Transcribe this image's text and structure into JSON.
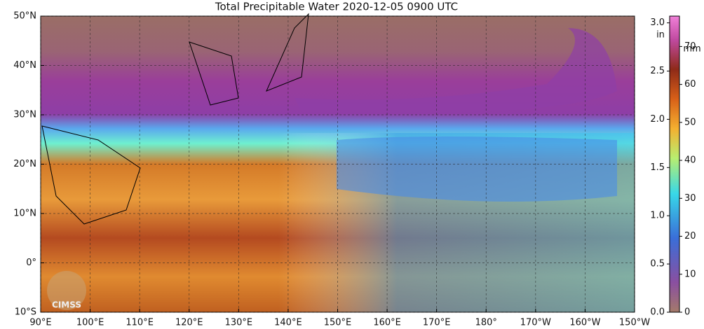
{
  "map": {
    "title": "Total Precipitable Water  2020-12-05 0900 UTC",
    "lon_range": [
      90,
      210
    ],
    "lat_range": [
      -10,
      50
    ],
    "lat_ticks": [
      {
        "value": 50,
        "label": "50°N"
      },
      {
        "value": 40,
        "label": "40°N"
      },
      {
        "value": 30,
        "label": "30°N"
      },
      {
        "value": 20,
        "label": "20°N"
      },
      {
        "value": 10,
        "label": "10°N"
      },
      {
        "value": 0,
        "label": "0°"
      },
      {
        "value": -10,
        "label": "10°S"
      }
    ],
    "lon_ticks": [
      {
        "value": 90,
        "label": "90°E"
      },
      {
        "value": 100,
        "label": "100°E"
      },
      {
        "value": 110,
        "label": "110°E"
      },
      {
        "value": 120,
        "label": "120°E"
      },
      {
        "value": 130,
        "label": "130°E"
      },
      {
        "value": 140,
        "label": "140°E"
      },
      {
        "value": 150,
        "label": "150°E"
      },
      {
        "value": 160,
        "label": "160°E"
      },
      {
        "value": 170,
        "label": "170°E"
      },
      {
        "value": 180,
        "label": "180°"
      },
      {
        "value": 190,
        "label": "170°W"
      },
      {
        "value": 200,
        "label": "160°W"
      },
      {
        "value": 210,
        "label": "150°W"
      }
    ],
    "colorbar": {
      "in_unit": "in",
      "mm_unit": "mm",
      "in_lim": [
        0,
        3.07
      ],
      "in_ticks": [
        {
          "value": 0,
          "label": "0.0"
        },
        {
          "value": 0.5,
          "label": "0.5"
        },
        {
          "value": 1,
          "label": "1.0"
        },
        {
          "value": 1.5,
          "label": "1.5"
        },
        {
          "value": 2,
          "label": "2.0"
        },
        {
          "value": 2.5,
          "label": "2.5"
        },
        {
          "value": 3,
          "label": "3.0"
        }
      ],
      "mm_lim": [
        0,
        78
      ],
      "mm_ticks": [
        0,
        10,
        20,
        30,
        40,
        50,
        60,
        70
      ]
    },
    "logo": "CIMSS"
  }
}
